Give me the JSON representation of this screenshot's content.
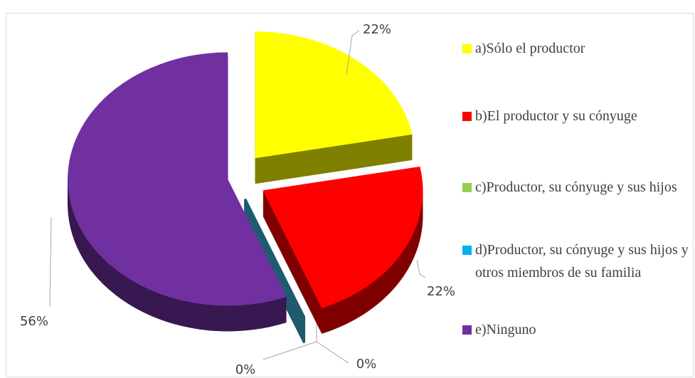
{
  "chart_data": {
    "type": "pie",
    "categories": [
      "a)Sólo el productor",
      "b)El productor y su cónyuge",
      "c)Productor, su cónyuge y sus hijos",
      "d)Productor, su cónyuge y sus hijos y otros miembros de su familia",
      "e)Ninguno"
    ],
    "values": [
      22,
      22,
      0,
      0,
      56
    ],
    "value_labels": [
      "22%",
      "22%",
      "0%",
      "0%",
      "56%"
    ],
    "colors": [
      "#ffff00",
      "#ff0000",
      "#92d050",
      "#00b0f0",
      "#7030a0"
    ],
    "legend": "right"
  }
}
